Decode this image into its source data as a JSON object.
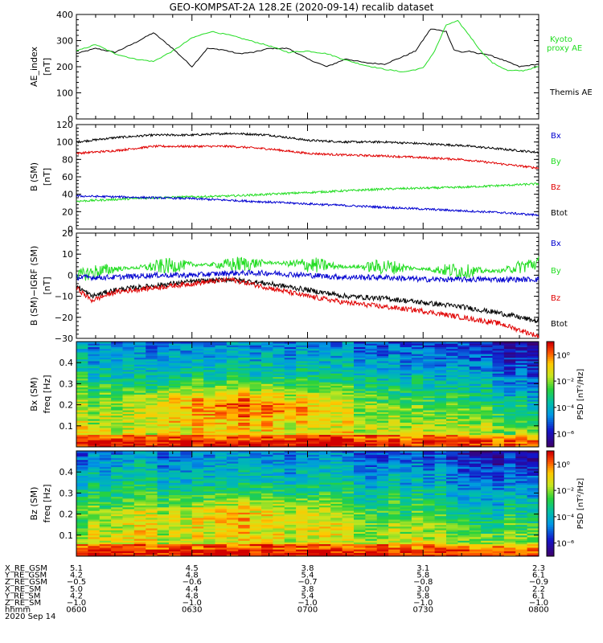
{
  "title": "GEO-KOMPSAT-2A 128.2E (2020-09-14) recalib dataset",
  "colors": {
    "black": "#000000",
    "red": "#e00000",
    "green": "#22dd22",
    "blue": "#0000d0"
  },
  "chart_data": [
    {
      "type": "line",
      "panel": "AE",
      "ylabel": [
        "AE_index",
        "[nT]"
      ],
      "ylim": [
        0,
        400
      ],
      "yticks": [
        0,
        100,
        200,
        300,
        400
      ],
      "xlim": [
        0,
        120
      ],
      "series": [
        {
          "name": "Themis AE",
          "color": "#000000",
          "x": [
            0,
            5,
            10,
            15,
            20,
            25,
            30,
            34,
            38,
            42,
            46,
            50,
            55,
            60,
            65,
            70,
            75,
            80,
            85,
            88,
            92,
            96,
            98,
            100,
            102,
            104,
            106,
            110,
            115,
            120
          ],
          "y": [
            250,
            270,
            255,
            290,
            330,
            270,
            200,
            270,
            265,
            250,
            255,
            270,
            270,
            230,
            200,
            230,
            215,
            210,
            240,
            260,
            345,
            335,
            265,
            255,
            260,
            250,
            250,
            230,
            200,
            210
          ]
        },
        {
          "name": "Kyoto proxy AE",
          "color": "#22dd22",
          "x": [
            0,
            5,
            10,
            15,
            20,
            25,
            30,
            35,
            40,
            45,
            50,
            55,
            60,
            65,
            70,
            75,
            80,
            85,
            90,
            93,
            96,
            99,
            102,
            105,
            108,
            112,
            116,
            120
          ],
          "y": [
            260,
            285,
            250,
            230,
            220,
            260,
            310,
            335,
            320,
            300,
            280,
            255,
            260,
            250,
            225,
            205,
            190,
            180,
            195,
            260,
            360,
            375,
            320,
            260,
            215,
            185,
            185,
            200
          ]
        }
      ],
      "legend": [
        "Kyoto",
        "proxy AE",
        "Themis AE"
      ]
    },
    {
      "type": "line",
      "panel": "B",
      "ylabel": [
        "B (SM)",
        "[nT]"
      ],
      "ylim": [
        0,
        120
      ],
      "yticks": [
        0,
        20,
        40,
        60,
        80,
        100,
        120
      ],
      "xlim": [
        0,
        120
      ],
      "series": [
        {
          "name": "Btot",
          "color": "#000000",
          "x": [
            0,
            10,
            20,
            30,
            40,
            50,
            60,
            70,
            80,
            90,
            100,
            110,
            120
          ],
          "y": [
            100,
            105,
            108,
            108,
            110,
            108,
            102,
            100,
            100,
            98,
            96,
            92,
            88
          ]
        },
        {
          "name": "Bz",
          "color": "#e00000",
          "x": [
            0,
            10,
            20,
            30,
            40,
            50,
            60,
            70,
            80,
            90,
            100,
            110,
            120
          ],
          "y": [
            87,
            90,
            95,
            95,
            95,
            92,
            87,
            85,
            84,
            82,
            80,
            75,
            70
          ]
        },
        {
          "name": "By",
          "color": "#22dd22",
          "x": [
            0,
            10,
            20,
            30,
            40,
            50,
            60,
            70,
            80,
            90,
            100,
            110,
            120
          ],
          "y": [
            32,
            34,
            36,
            37,
            38,
            40,
            42,
            44,
            46,
            47,
            48,
            50,
            52
          ]
        },
        {
          "name": "Bx",
          "color": "#0000d0",
          "x": [
            0,
            10,
            20,
            30,
            40,
            50,
            60,
            70,
            80,
            90,
            100,
            110,
            120
          ],
          "y": [
            38,
            37,
            36,
            35,
            33,
            31,
            29,
            27,
            25,
            23,
            21,
            19,
            16
          ]
        }
      ],
      "legend": [
        "Bx",
        "By",
        "Bz",
        "Btot"
      ]
    },
    {
      "type": "line",
      "panel": "dB",
      "ylabel": [
        "B (SM)−IGRF (SM)",
        "[nT]"
      ],
      "ylim": [
        -30,
        20
      ],
      "yticks": [
        -30,
        -20,
        -10,
        0,
        10,
        20
      ],
      "xlim": [
        0,
        120
      ],
      "series": [
        {
          "name": "By",
          "color": "#22dd22",
          "x": [
            0,
            10,
            20,
            30,
            40,
            50,
            60,
            70,
            80,
            90,
            100,
            110,
            120
          ],
          "y": [
            0,
            3,
            4,
            5,
            5,
            6,
            5,
            4,
            4,
            3,
            2,
            2,
            6
          ]
        },
        {
          "name": "Bx",
          "color": "#0000d0",
          "x": [
            0,
            10,
            20,
            30,
            40,
            50,
            60,
            70,
            80,
            90,
            100,
            110,
            120
          ],
          "y": [
            -1,
            -1,
            0,
            0,
            1,
            1,
            0,
            -1,
            -1,
            -2,
            -2,
            -2,
            -2
          ]
        },
        {
          "name": "Btot",
          "color": "#000000",
          "x": [
            0,
            4,
            10,
            20,
            30,
            40,
            50,
            60,
            70,
            80,
            90,
            100,
            110,
            120
          ],
          "y": [
            -5,
            -10,
            -7,
            -5,
            -3,
            -2,
            -4,
            -7,
            -10,
            -11,
            -13,
            -15,
            -18,
            -22
          ]
        },
        {
          "name": "Bz",
          "color": "#e00000",
          "x": [
            0,
            4,
            10,
            20,
            30,
            40,
            50,
            60,
            70,
            80,
            90,
            100,
            110,
            120
          ],
          "y": [
            -6,
            -12,
            -8,
            -6,
            -4,
            -2,
            -6,
            -10,
            -13,
            -15,
            -17,
            -20,
            -23,
            -29
          ]
        }
      ],
      "legend": [
        "Bx",
        "By",
        "Bz",
        "Btot"
      ]
    },
    {
      "type": "heatmap",
      "panel": "Bx spectrogram",
      "ylabel": [
        "Bx (SM)",
        "freq [Hz]"
      ],
      "ylim": [
        0,
        0.5
      ],
      "yticks": [
        0.1,
        0.2,
        0.3,
        0.4
      ],
      "colorbar_label": "PSD [nT²/Hz]",
      "colorbar_ticks": [
        "10⁰",
        "10⁻²",
        "10⁻⁴",
        "10⁻⁶"
      ],
      "colorbar_range_log10": [
        -7,
        1
      ]
    },
    {
      "type": "heatmap",
      "panel": "Bz spectrogram",
      "ylabel": [
        "Bz (SM)",
        "freq [Hz]"
      ],
      "ylim": [
        0,
        0.5
      ],
      "yticks": [
        0.1,
        0.2,
        0.3,
        0.4
      ],
      "colorbar_label": "PSD [nT²/Hz]",
      "colorbar_ticks": [
        "10⁰",
        "10⁻²",
        "10⁻⁴",
        "10⁻⁶"
      ],
      "colorbar_range_log10": [
        -7,
        1
      ]
    }
  ],
  "ephemeris": {
    "rows": [
      {
        "label": "X_RE_GSM",
        "values": [
          "5.1",
          "4.5",
          "3.8",
          "3.1",
          "2.3"
        ]
      },
      {
        "label": "Y_RE_GSM",
        "values": [
          "4.2",
          "4.8",
          "5.4",
          "5.8",
          "6.1"
        ]
      },
      {
        "label": "Z_RE_GSM",
        "values": [
          "−0.5",
          "−0.6",
          "−0.7",
          "−0.8",
          "−0.9"
        ]
      },
      {
        "label": "X_RE_SM",
        "values": [
          "5.0",
          "4.4",
          "3.8",
          "3.0",
          "2.2"
        ]
      },
      {
        "label": "Y_RE_SM",
        "values": [
          "4.2",
          "4.8",
          "5.4",
          "5.8",
          "6.1"
        ]
      },
      {
        "label": "Z_RE_SM",
        "values": [
          "−1.0",
          "−1.0",
          "−1.0",
          "−1.0",
          "−1.0"
        ]
      },
      {
        "label": "hhmm",
        "values": [
          "0600",
          "0630",
          "0700",
          "0730",
          "0800"
        ]
      }
    ],
    "date": "2020 Sep 14"
  }
}
